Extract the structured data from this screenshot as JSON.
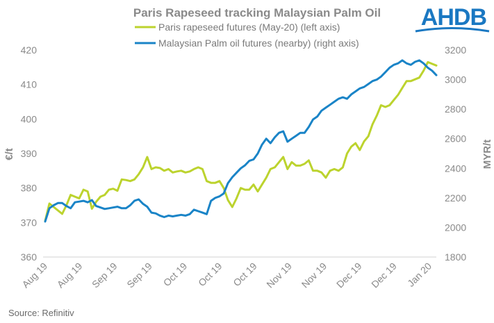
{
  "logo": {
    "text": "AHDB",
    "color": "#1a78c2"
  },
  "source": "Source: Refinitiv",
  "chart_data": {
    "type": "line",
    "title": "Paris Rapeseed tracking Malaysian Palm Oil",
    "x_tick_labels": [
      "Aug 19",
      "Aug 19",
      "Sep 19",
      "Sep 19",
      "Oct 19",
      "Oct 19",
      "Oct 19",
      "Nov 19",
      "Nov 19",
      "Dec 19",
      "Dec 19",
      "Jan 20"
    ],
    "y_left": {
      "label": "€/t",
      "range": [
        360,
        420
      ],
      "ticks": [
        360,
        370,
        380,
        390,
        400,
        410,
        420
      ]
    },
    "y_right": {
      "label": "MYR/t",
      "range": [
        1800,
        3200
      ],
      "ticks": [
        1800,
        2000,
        2200,
        2400,
        2600,
        2800,
        3000,
        3200
      ]
    },
    "grid": false,
    "legend_placement": "top",
    "series": [
      {
        "name": "Paris rapeseed futures (May-20) (left axis)",
        "axis": "left",
        "color": "#bcd32e",
        "values": [
          370.5,
          375.5,
          374.5,
          373.5,
          372.5,
          375,
          378,
          377.5,
          377,
          379.5,
          379,
          374,
          376,
          377.5,
          378,
          379.5,
          379.8,
          379.2,
          382.5,
          382.3,
          382,
          382.5,
          384,
          386,
          389,
          385.5,
          386,
          385.8,
          385,
          385.5,
          384.5,
          384.8,
          385,
          384.5,
          384.8,
          385.5,
          386,
          385.5,
          382,
          381.5,
          381.5,
          382,
          380,
          376.5,
          374.5,
          377,
          380,
          379.5,
          379.5,
          381,
          379,
          381,
          383,
          385.5,
          386,
          387.5,
          389,
          385.5,
          387.5,
          386.5,
          386.5,
          387,
          388,
          385,
          385,
          384.5,
          383,
          385,
          385.5,
          385,
          386,
          390,
          392,
          393,
          391,
          393.5,
          395,
          398.5,
          401,
          404,
          403.5,
          404,
          405.5,
          407,
          409,
          411,
          411,
          411.5,
          412,
          414,
          416.5,
          416,
          415.5
        ]
      },
      {
        "name": "Malaysian Palm oil futures (nearby) (right axis)",
        "axis": "right",
        "color": "#1a84c7",
        "values": [
          2040,
          2130,
          2150,
          2165,
          2165,
          2145,
          2130,
          2170,
          2175,
          2180,
          2170,
          2185,
          2145,
          2135,
          2125,
          2130,
          2135,
          2140,
          2130,
          2130,
          2150,
          2180,
          2190,
          2160,
          2140,
          2100,
          2095,
          2080,
          2070,
          2080,
          2075,
          2080,
          2085,
          2080,
          2090,
          2120,
          2110,
          2100,
          2090,
          2180,
          2200,
          2210,
          2230,
          2300,
          2340,
          2370,
          2400,
          2420,
          2450,
          2460,
          2500,
          2560,
          2600,
          2570,
          2610,
          2640,
          2650,
          2580,
          2600,
          2620,
          2640,
          2640,
          2680,
          2730,
          2750,
          2790,
          2810,
          2830,
          2850,
          2870,
          2880,
          2870,
          2900,
          2920,
          2940,
          2950,
          2970,
          2990,
          3000,
          3020,
          3050,
          3080,
          3100,
          3110,
          3130,
          3110,
          3100,
          3120,
          3130,
          3110,
          3080,
          3060,
          3030
        ]
      }
    ]
  }
}
